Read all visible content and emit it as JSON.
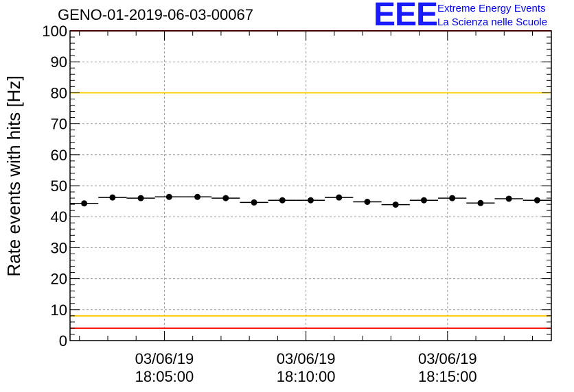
{
  "header": {
    "run_title": "GENO-01-2019-06-03-00067"
  },
  "logo": {
    "mark": "EEE",
    "line1": "Extreme Energy Events",
    "line2": "La Scienza nelle Scuole"
  },
  "chart_data": {
    "type": "scatter",
    "title": "",
    "ylabel": "Rate events with hits [Hz]",
    "xlabel": "",
    "ylim": [
      0,
      100
    ],
    "xlim": [
      "18:01:40",
      "18:18:40"
    ],
    "y_ticks": [
      0,
      10,
      20,
      30,
      40,
      50,
      60,
      70,
      80,
      90,
      100
    ],
    "x_ticks": [
      {
        "date": "03/06/19",
        "time": "18:05:00",
        "x": "18:05:00"
      },
      {
        "date": "03/06/19",
        "time": "18:10:00",
        "x": "18:10:00"
      },
      {
        "date": "03/06/19",
        "time": "18:15:00",
        "x": "18:15:00"
      }
    ],
    "grid": true,
    "bin_width_seconds": 60,
    "series": [
      {
        "x": [
          "18:02:10",
          "18:03:10",
          "18:04:10",
          "18:05:10",
          "18:06:10",
          "18:07:10",
          "18:08:10",
          "18:09:10",
          "18:10:10",
          "18:11:10",
          "18:12:10",
          "18:13:10",
          "18:14:10",
          "18:15:10",
          "18:16:10",
          "18:17:10",
          "18:18:10"
        ],
        "values": [
          44.3,
          46.2,
          46.0,
          46.4,
          46.4,
          46.0,
          44.6,
          45.3,
          45.3,
          46.2,
          44.8,
          43.9,
          45.3,
          46.0,
          44.4,
          45.8,
          45.3
        ]
      }
    ],
    "reference_lines": [
      {
        "y": 100,
        "color": "#ff0000"
      },
      {
        "y": 80,
        "color": "#ffcc00"
      },
      {
        "y": 8,
        "color": "#ffcc00"
      },
      {
        "y": 4,
        "color": "#ff0000"
      }
    ]
  }
}
